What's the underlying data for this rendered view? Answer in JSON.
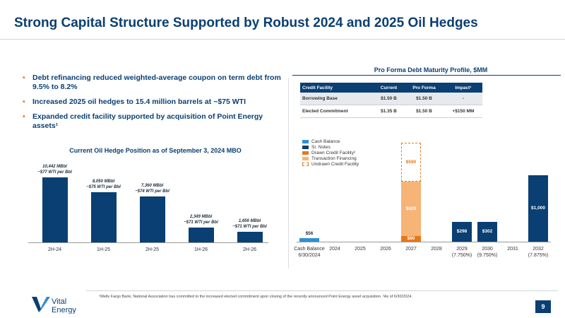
{
  "page": {
    "title": "Strong Capital Structure Supported by Robust 2024 and 2025 Oil Hedges",
    "page_number": "9"
  },
  "bullets": [
    "Debt refinancing reduced weighted-average coupon on term debt from 9.5% to 8.2%",
    "Increased 2025 oil hedges to 15.4 million barrels at ~$75 WTI",
    "Expanded credit facility supported by acquisition of Point Energy assets¹"
  ],
  "hedge_chart_title": "Current Oil Hedge Position as of September 3, 2024 MBO",
  "debt_chart_title": "Pro Forma Debt Maturity Profile, $MM",
  "credit_table": {
    "headers": [
      "Credit Facility",
      "Current",
      "Pro Forma",
      "Impact¹"
    ],
    "rows": [
      [
        "Borrowing Base",
        "$1.50 B",
        "$1.50 B",
        "-"
      ],
      [
        "Elected Commitment",
        "$1.35 B",
        "$1.50 B",
        "+$150 MM"
      ]
    ]
  },
  "colors": {
    "navy": "#0a3f73",
    "light_blue": "#2e8fd1",
    "orange": "#e8771a",
    "light_orange": "#f6b477",
    "accent": "#e8771a"
  },
  "chart_data": [
    {
      "type": "bar",
      "title": "Current Oil Hedge Position as of September 3, 2024 MBO",
      "categories": [
        "2H-24",
        "1H-25",
        "2H-25",
        "1H-26",
        "2H-26"
      ],
      "values": [
        10442,
        8050,
        7360,
        2349,
        1656
      ],
      "data_labels": [
        "10,442 MBbl",
        "8,050 MBbl",
        "7,360 MBbl",
        "2,349 MBbl",
        "1,656 MBbl"
      ],
      "price_labels": [
        "~$77 WTI per Bbl",
        "~$75 WTI per Bbl",
        "~$74 WTI per Bbl",
        "~$71 WTI per Bbl",
        "~$71 WTI per Bbl"
      ],
      "ylim": [
        0,
        12500
      ]
    },
    {
      "type": "bar",
      "title": "Pro Forma Debt Maturity Profile, $MM",
      "categories": [
        "Cash Balance 6/30/2024",
        "2024",
        "2025",
        "2026",
        "2027",
        "2028",
        "2029 (7.750%)",
        "2030 (9.750%)",
        "2031",
        "2032 (7.875%)"
      ],
      "ylim": [
        0,
        1150
      ],
      "series": [
        {
          "name": "Cash Balance",
          "values": [
            56,
            0,
            0,
            0,
            0,
            0,
            0,
            0,
            0,
            0
          ],
          "labels": [
            "$56",
            "",
            "",
            "",
            "",
            "",
            "",
            "",
            "",
            ""
          ]
        },
        {
          "name": "Sr. Notes",
          "values": [
            0,
            0,
            0,
            0,
            0,
            0,
            298,
            302,
            0,
            1000
          ],
          "labels": [
            "",
            "",
            "",
            "",
            "",
            "",
            "$298",
            "$302",
            "",
            "$1,000"
          ]
        },
        {
          "name": "Drawn Credit Facility²",
          "values": [
            0,
            0,
            0,
            0,
            80,
            0,
            0,
            0,
            0,
            0
          ],
          "labels": [
            "",
            "",
            "",
            "",
            "$80",
            "",
            "",
            "",
            "",
            ""
          ]
        },
        {
          "name": "Transaction Financing",
          "values": [
            0,
            0,
            0,
            0,
            820,
            0,
            0,
            0,
            0,
            0
          ],
          "labels": [
            "",
            "",
            "",
            "",
            "$820",
            "",
            "",
            "",
            "",
            ""
          ]
        },
        {
          "name": "Undrawn Credit Facility",
          "values": [
            0,
            0,
            0,
            0,
            590,
            0,
            0,
            0,
            0,
            0
          ],
          "labels": [
            "",
            "",
            "",
            "",
            "$590",
            "",
            "",
            "",
            "",
            ""
          ]
        }
      ]
    }
  ],
  "footnote": "¹Wells Fargo Bank, National Association has committed to the increased elected commitment upon closing of the recently announced Point Energy asset acquisition. ²As of 6/30/2024.",
  "logo": {
    "line1": "Vital",
    "line2": "Energy"
  }
}
